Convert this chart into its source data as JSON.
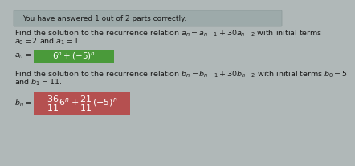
{
  "bg_color": "#b0b8b8",
  "header_bg": "#9daaaa",
  "header_text": "You have answered 1 out of 2 parts correctly.",
  "header_text_color": "#1a1a1a",
  "body_bg": "#b0b8b8",
  "line1": "Find the solution to the recurrence relation $a_n = a_{n-1} + 30a_{n-2}$ with initial terms",
  "line2": "$a_0 = 2$ and $a_1 = 1$.",
  "answer1_bg": "#4a9a3a",
  "answer1_text": "$6^n + (-5)^n$",
  "answer1_prefix": "$a_n = $",
  "line3": "Find the solution to the recurrence relation $b_n = b_{n-1} + 30b_{n-2}$ with initial terms $b_0 = 5$",
  "line4": "and $b_1 = 11$.",
  "answer2_bg": "#b55050",
  "answer2_text": "$\\dfrac{36}{11}6^n + \\dfrac{21}{11}(-5)^n$",
  "answer2_prefix": "$b_n = $",
  "text_color": "#1a1a1a",
  "font_size_body": 6.8,
  "font_size_header": 6.5,
  "font_size_answer": 7.5,
  "font_size_answer2": 8.0
}
